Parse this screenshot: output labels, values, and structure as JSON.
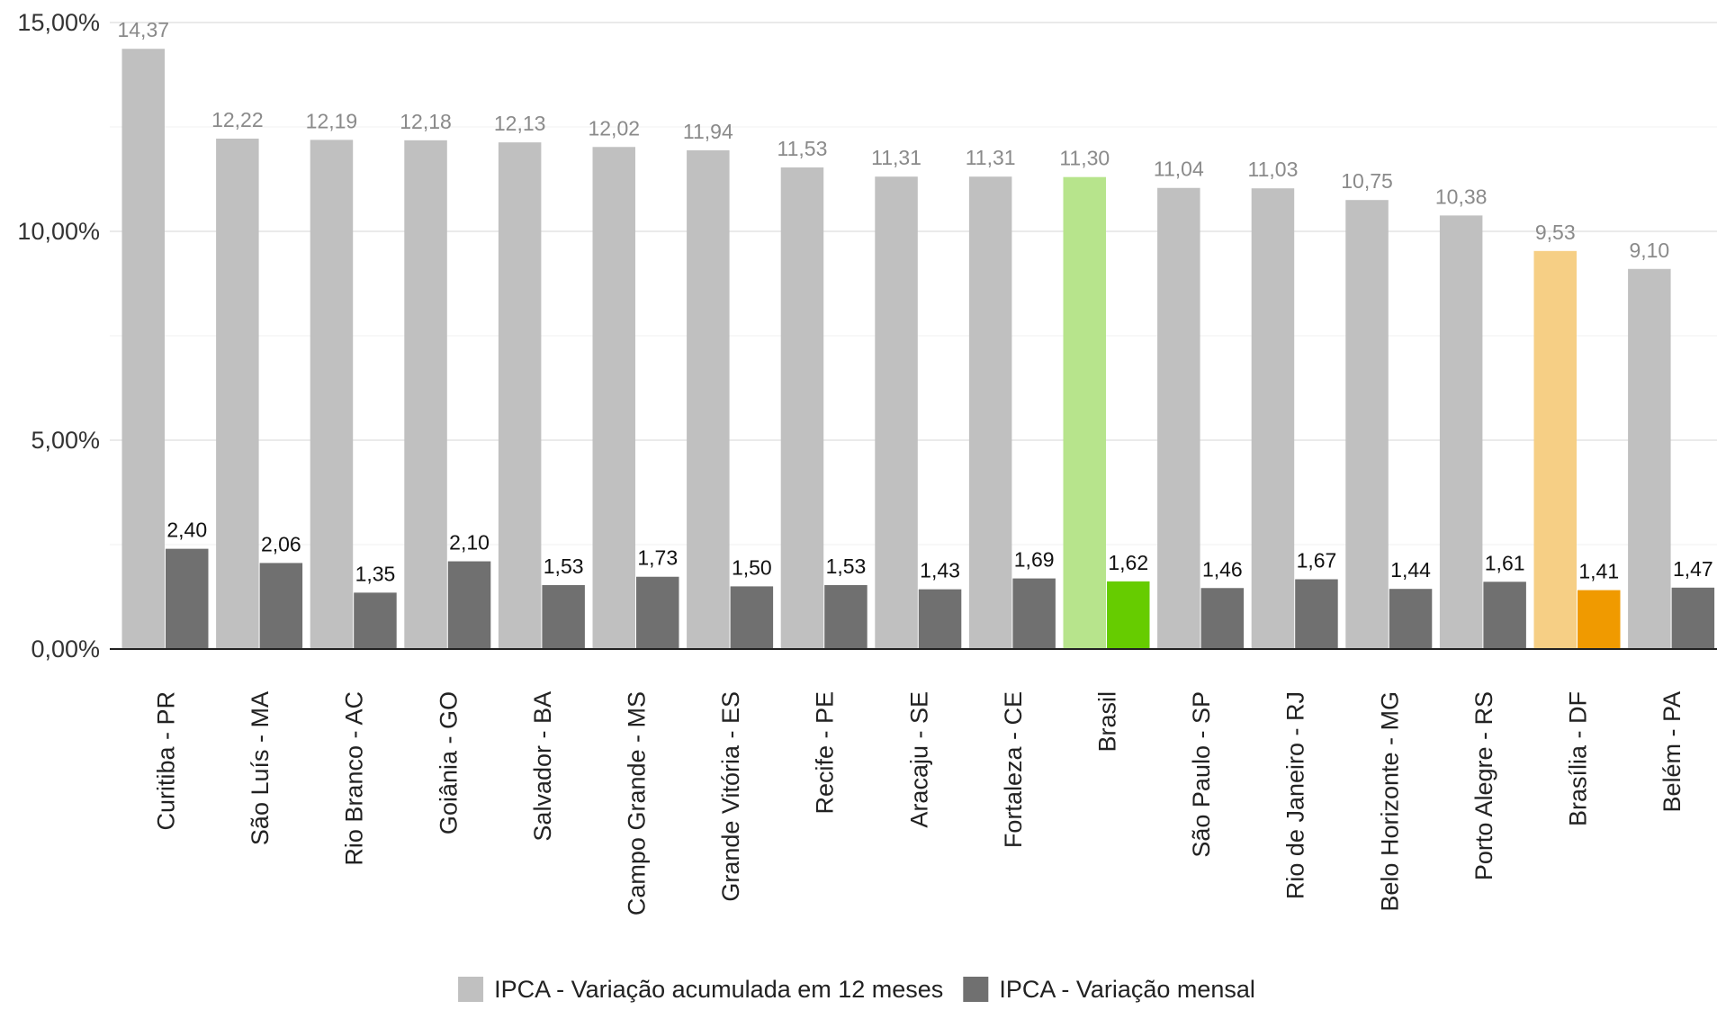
{
  "chart_data": {
    "type": "bar",
    "categories": [
      "Curitiba - PR",
      "São Luís - MA",
      "Rio Branco - AC",
      "Goiânia - GO",
      "Salvador - BA",
      "Campo Grande - MS",
      "Grande Vitória - ES",
      "Recife - PE",
      "Aracaju - SE",
      "Fortaleza - CE",
      "Brasil",
      "São Paulo - SP",
      "Rio de Janeiro - RJ",
      "Belo Horizonte - MG",
      "Porto Alegre - RS",
      "Brasília - DF",
      "Belém - PA"
    ],
    "series": [
      {
        "name": "IPCA - Variação acumulada em 12 meses",
        "values": [
          14.37,
          12.22,
          12.19,
          12.18,
          12.13,
          12.02,
          11.94,
          11.53,
          11.31,
          11.31,
          11.3,
          11.04,
          11.03,
          10.75,
          10.38,
          9.53,
          9.1
        ],
        "labels": [
          "14,37",
          "12,22",
          "12,19",
          "12,18",
          "12,13",
          "12,02",
          "11,94",
          "11,53",
          "11,31",
          "11,31",
          "11,30",
          "11,04",
          "11,03",
          "10,75",
          "10,38",
          "9,53",
          "9,10"
        ],
        "color": "#c0c0c0",
        "highlight_colors": {
          "Brasil": "#b7e48c",
          "Brasília - DF": "#f6cf85"
        }
      },
      {
        "name": "IPCA - Variação mensal",
        "values": [
          2.4,
          2.06,
          1.35,
          2.1,
          1.53,
          1.73,
          1.5,
          1.53,
          1.43,
          1.69,
          1.62,
          1.46,
          1.67,
          1.44,
          1.61,
          1.41,
          1.47
        ],
        "labels": [
          "2,40",
          "2,06",
          "1,35",
          "2,10",
          "1,53",
          "1,73",
          "1,50",
          "1,53",
          "1,43",
          "1,69",
          "1,62",
          "1,46",
          "1,67",
          "1,44",
          "1,61",
          "1,41",
          "1,47"
        ],
        "color": "#707070",
        "highlight_colors": {
          "Brasil": "#66cc00",
          "Brasília - DF": "#f09a00"
        }
      }
    ],
    "ylim": [
      0,
      15
    ],
    "yticks": [
      0,
      5,
      10,
      15
    ],
    "ytick_labels": [
      "0,00%",
      "5,00%",
      "10,00%",
      "15,00%"
    ],
    "grid": true,
    "legend_position": "bottom",
    "title": "",
    "xlabel": "",
    "ylabel": ""
  }
}
